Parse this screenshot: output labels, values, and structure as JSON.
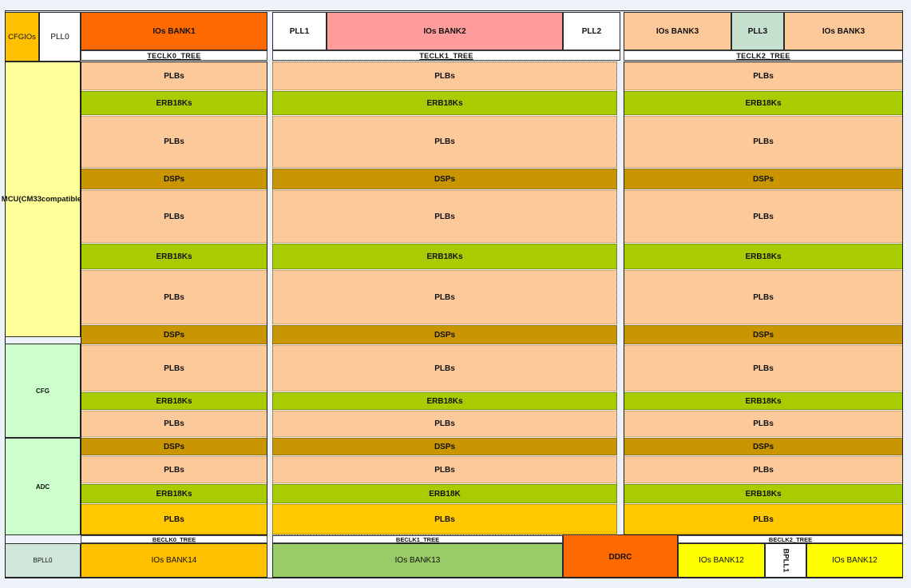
{
  "top": {
    "cfgios": "CFGIOs",
    "pll0": "PLL0",
    "bank1": "IOs BANK1",
    "pll1": "PLL1",
    "bank2": "IOs BANK2",
    "pll2": "PLL2",
    "bank3_left": "IOs BANK3",
    "pll3": "PLL3",
    "bank3_right": "IOs BANK3"
  },
  "trees": {
    "top": [
      "TECLK0_TREE",
      "TECLK1_TREE",
      "TECLK2_TREE"
    ],
    "bottom": [
      "BECLK0_TREE",
      "BECLK1_TREE",
      "BECLK2_TREE"
    ]
  },
  "left": {
    "mcu": "MCU(CM33compatible)",
    "cfg": "CFG",
    "adc": "ADC",
    "bpll0": "BPLL0"
  },
  "fabric": {
    "rows": [
      "PLBs",
      "ERB18Ks",
      "PLBs",
      "DSPs",
      "PLBs",
      "ERB18Ks",
      "PLBs",
      "DSPs",
      "PLBs",
      "ERB18Ks",
      "PLBs",
      "DSPs",
      "PLBs",
      "ERB18Ks",
      "PLBs"
    ],
    "row14_col1": "ERB18K"
  },
  "bottom": {
    "bank14": "IOs BANK14",
    "bank13": "IOs BANK13",
    "ddrc": "DDRC",
    "bank12_left": "IOs BANK12",
    "bpll1": "BPLL1",
    "bank12_right": "IOs BANK12"
  },
  "colors": {
    "plb": "#fcc99b",
    "erb": "#a9cc00",
    "dsp": "#c99500",
    "plb_bottom": "#ffc800",
    "bank1": "#ff6a00",
    "bank2": "#ff9d9d",
    "bank3": "#fcc99b",
    "pll3": "#c6e0d0",
    "cfgios": "#ffc000",
    "mcu": "#ffff99",
    "cfg_adc": "#ccffcc",
    "bpll0": "#cfe6d8",
    "bank14": "#ffc000",
    "bank13": "#99cc66",
    "ddrc": "#ff6a00",
    "bank12": "#ffff00"
  }
}
